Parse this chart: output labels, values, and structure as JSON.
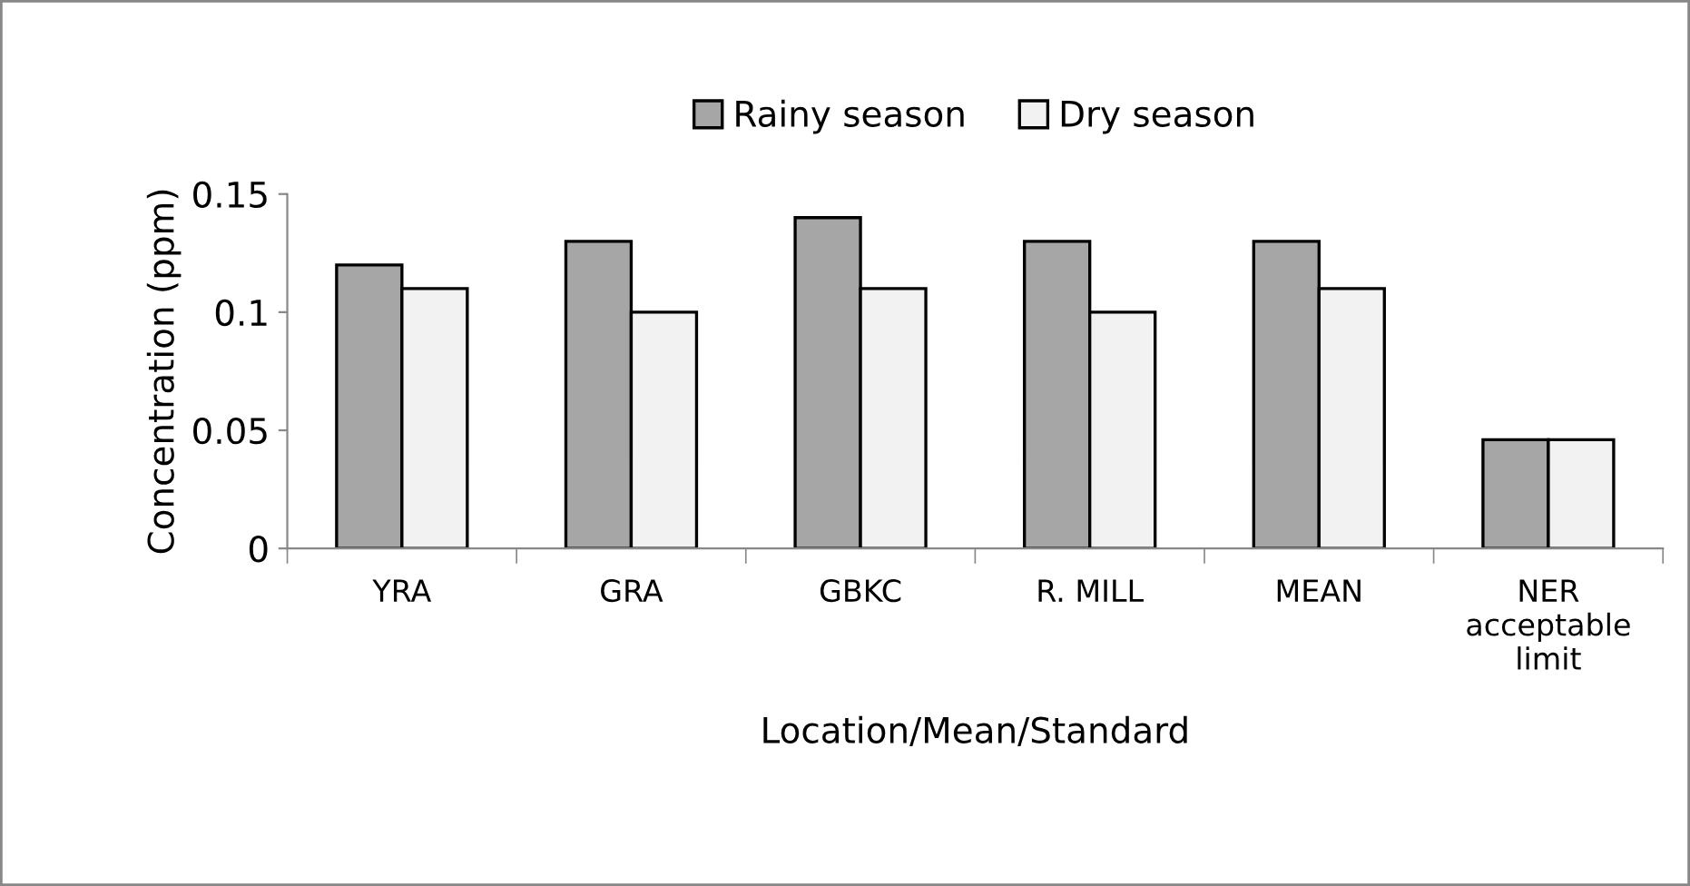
{
  "chart_data": {
    "type": "bar",
    "xlabel": "Location/Mean/Standard",
    "ylabel": "Concentration (ppm)",
    "categories": [
      "YRA",
      "GRA",
      "GBKC",
      "R. MILL",
      "MEAN",
      "NER\nacceptable\nlimit"
    ],
    "series": [
      {
        "name": "Rainy season",
        "color": "#a6a6a6",
        "values": [
          0.12,
          0.13,
          0.14,
          0.13,
          0.13,
          0.046
        ]
      },
      {
        "name": "Dry season",
        "color": "#f2f2f2",
        "values": [
          0.11,
          0.1,
          0.11,
          0.1,
          0.11,
          0.046
        ]
      }
    ],
    "ylim": [
      0,
      0.15
    ],
    "yticks": [
      0,
      0.05,
      0.1,
      0.15
    ],
    "grid": false,
    "legend": "top"
  }
}
